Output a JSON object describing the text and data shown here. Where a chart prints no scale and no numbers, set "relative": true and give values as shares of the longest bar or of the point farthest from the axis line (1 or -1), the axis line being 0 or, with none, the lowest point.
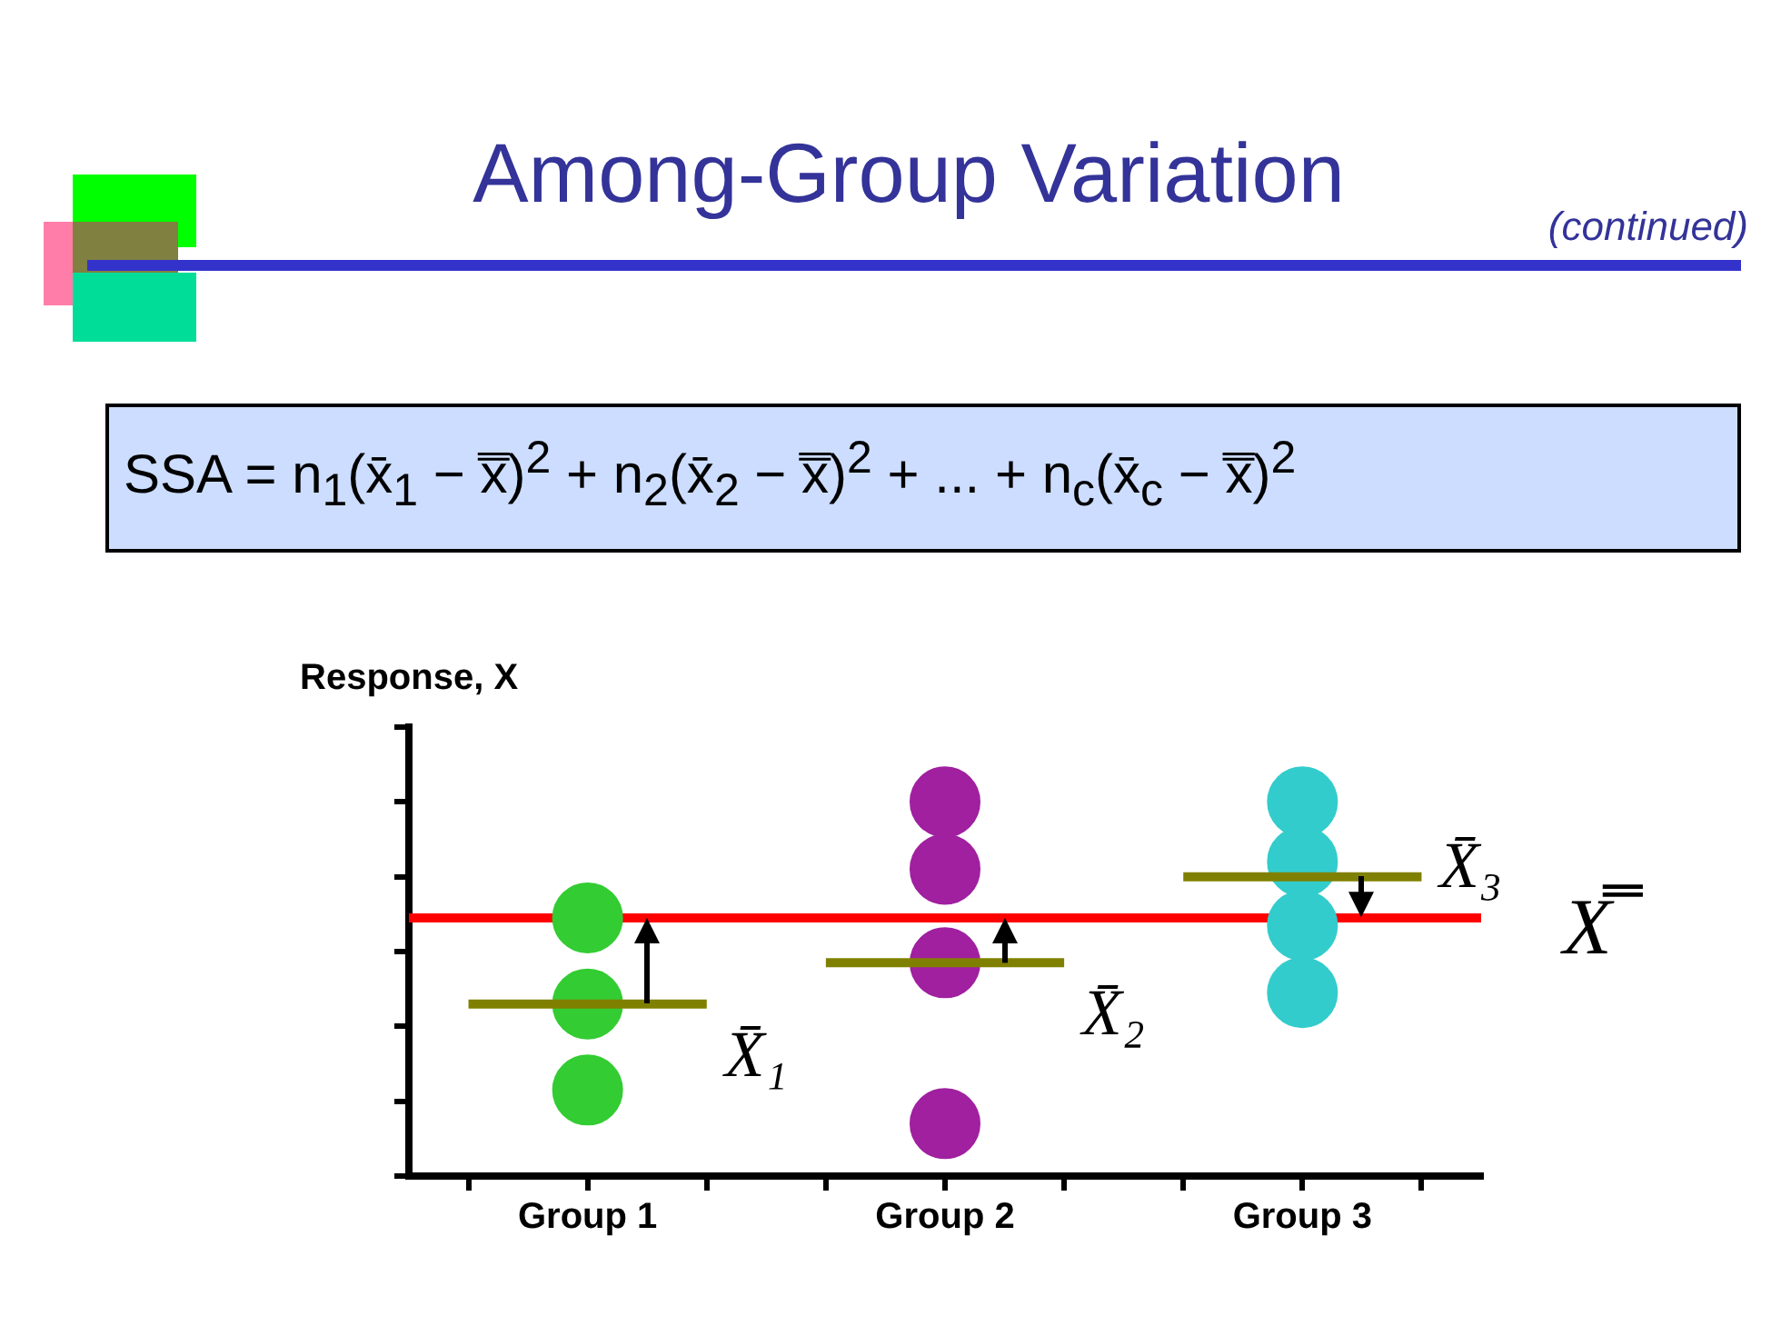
{
  "chart_data": {
    "type": "scatter",
    "title": "Among-Group Variation",
    "subtitle": "(continued)",
    "ylabel": "Response, X",
    "annotations": [
      "SSA = n$_{1}$(x̄$_{1}$ − x̿)$^{2}$ + n$_{2}$(x̄$_{2}$ − x̿)$^{2}$ + ... + n$_{c}$(x̄$_{c}$ − x̿)$^{2}$",
      {
        "text": "X̄₁",
        "x": "Group 1",
        "y": 0.46
      },
      {
        "text": "X̄₂",
        "x": "Group 2",
        "y": 0.57
      },
      {
        "text": "X̄₃",
        "x": "Group 3",
        "y": 0.8
      }
    ],
    "relative": true,
    "categories": [
      null,
      "Group 1",
      null,
      null,
      "Group 2",
      null,
      null,
      "Group 3",
      null
    ],
    "series": [
      {
        "color": "#33cc33",
        "x": [
          "Group 1",
          "Group 1",
          "Group 1"
        ],
        "values": [
          0.69,
          0.46,
          0.23
        ]
      },
      {
        "color": "#a020a0",
        "x": [
          "Group 2",
          "Group 2",
          "Group 2",
          "Group 2"
        ],
        "values": [
          1,
          0.82,
          0.57,
          0.14
        ]
      },
      {
        "color": "#33cccc",
        "x": [
          "Group 3",
          "Group 3",
          "Group 3",
          "Group 3"
        ],
        "values": [
          1,
          0.84,
          0.67,
          0.49
        ]
      },
      {
        "type": "line",
        "color": "#808000",
        "marker": "none",
        "values": [
          0.46,
          0.46,
          0.46,
          null,
          null,
          null,
          null,
          null,
          null
        ]
      },
      {
        "type": "line",
        "color": "#808000",
        "marker": "none",
        "values": [
          null,
          null,
          null,
          0.57,
          0.57,
          0.57,
          null,
          null,
          null
        ]
      },
      {
        "type": "line",
        "color": "#808000",
        "marker": "none",
        "values": [
          null,
          null,
          null,
          null,
          null,
          null,
          0.8,
          0.8,
          0.8
        ]
      }
    ],
    "ref_lines": [
      {
        "axis": "y",
        "value": 0.69,
        "label": "X̿",
        "color": "#ff0000"
      }
    ],
    "marker": "circle",
    "grid": false,
    "legend": false
  }
}
